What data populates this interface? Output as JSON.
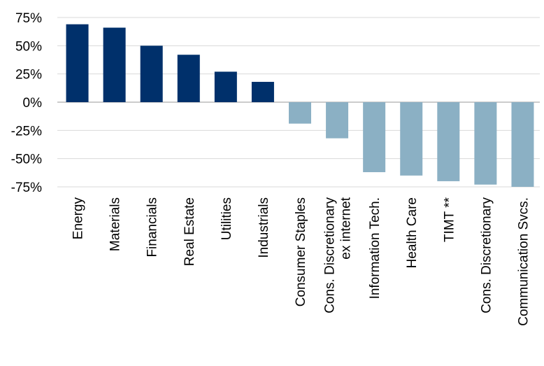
{
  "chart_data": {
    "type": "bar",
    "title": "",
    "xlabel": "",
    "ylabel": "",
    "ylim": [
      -75,
      75
    ],
    "yticks": [
      75,
      50,
      25,
      0,
      -25,
      -50,
      -75
    ],
    "ytick_labels": [
      "75%",
      "50%",
      "25%",
      "0%",
      "-25%",
      "-50%",
      "-75%"
    ],
    "grid": true,
    "categories": [
      [
        "Energy"
      ],
      [
        "Materials"
      ],
      [
        "Financials"
      ],
      [
        "Real Estate"
      ],
      [
        "Utilities"
      ],
      [
        "Industrials"
      ],
      [
        "Consumer Staples"
      ],
      [
        "Cons. Discretionary",
        "ex internet"
      ],
      [
        "Information Tech."
      ],
      [
        "Health Care"
      ],
      [
        "TIMT **"
      ],
      [
        "Cons. Discretionary"
      ],
      [
        "Communication Svcs."
      ]
    ],
    "values": [
      69,
      66,
      50,
      42,
      27,
      18,
      -19,
      -32,
      -62,
      -65,
      -70,
      -73,
      -75
    ],
    "colors": {
      "positive": "#00306b",
      "negative": "#8bb0c4"
    }
  }
}
